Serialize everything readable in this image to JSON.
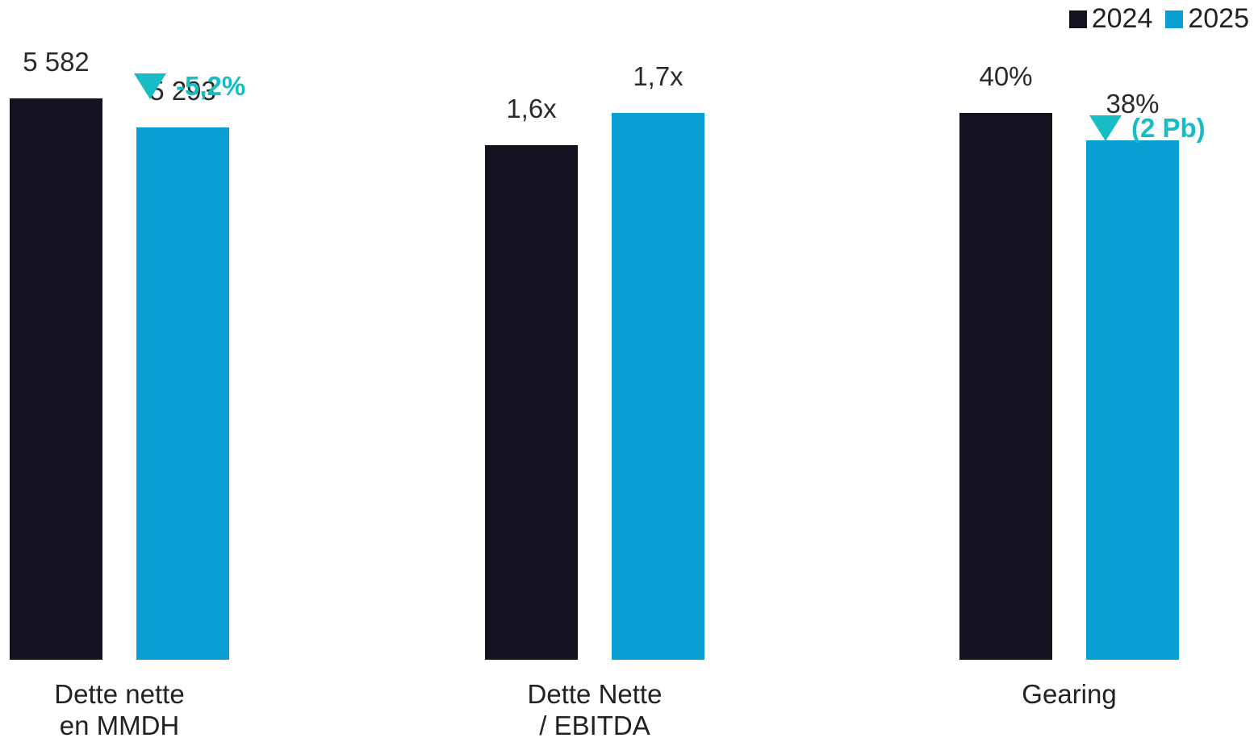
{
  "chart_data": {
    "type": "bar",
    "title": "",
    "legend_position": "top-right",
    "series": [
      {
        "name": "2024",
        "color": "#13121f"
      },
      {
        "name": "2025",
        "color": "#0a9fd2"
      }
    ],
    "groups": [
      {
        "category": [
          "Dette nette",
          "en MMDH"
        ],
        "values": [
          5582,
          5293
        ],
        "labels": [
          "5 582",
          "5 293"
        ],
        "annotation": "-5,2%"
      },
      {
        "category": [
          "Dette Nette",
          "/ EBITDA"
        ],
        "values": [
          1.6,
          1.7
        ],
        "labels": [
          "1,6x",
          "1,7x"
        ],
        "annotation": ""
      },
      {
        "category": [
          "Gearing"
        ],
        "values": [
          40,
          38
        ],
        "labels": [
          "40%",
          "38%"
        ],
        "annotation": "(2 Pb)"
      }
    ],
    "annotation_color": "#17bcc4",
    "grid": false
  }
}
